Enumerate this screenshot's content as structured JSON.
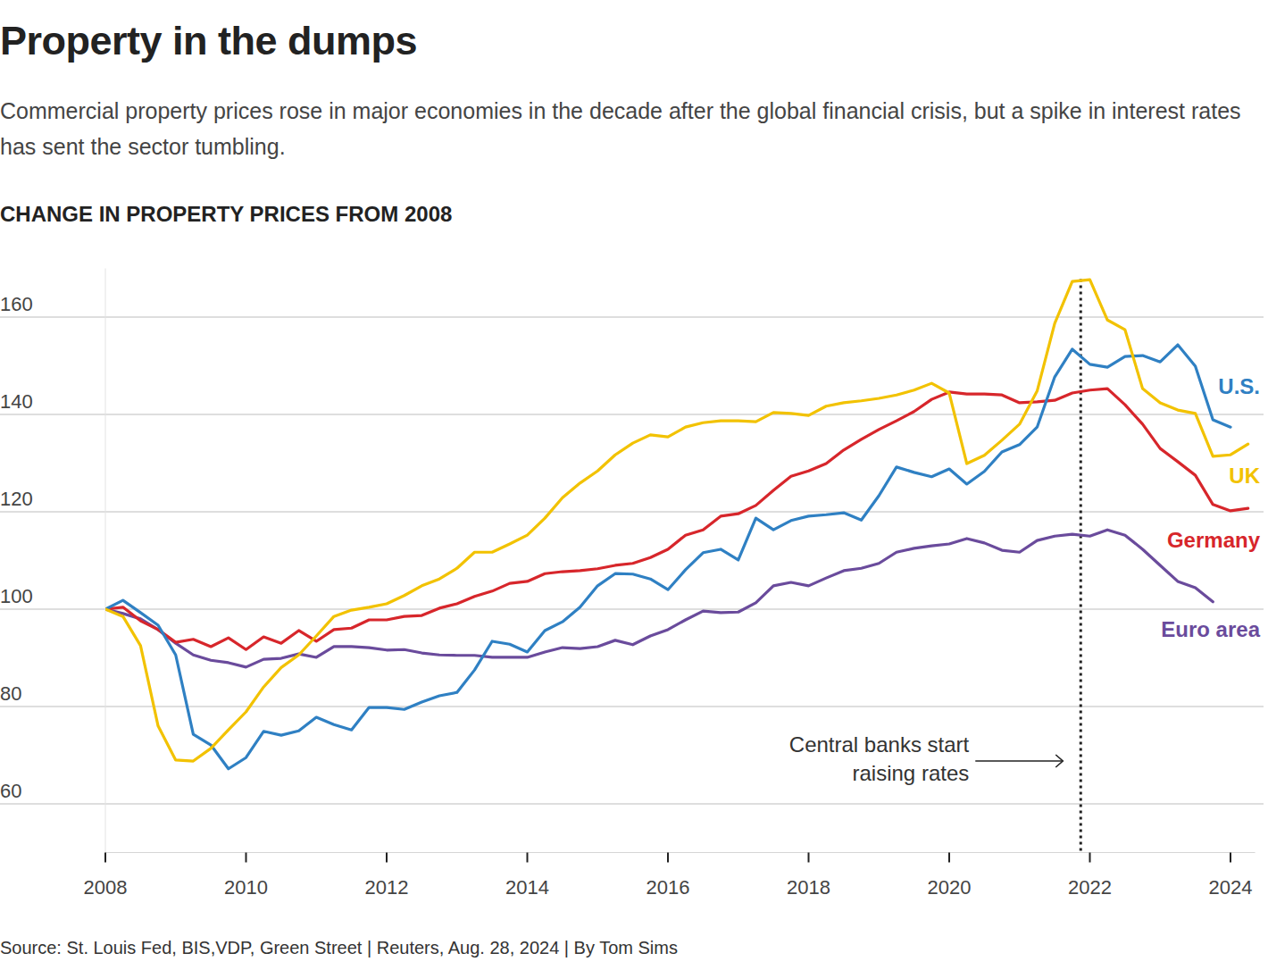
{
  "chart_data": {
    "type": "line",
    "title": "Property in the dumps",
    "subtitle": "Commercial property prices rose in major economies in the decade after the global financial crisis, but a spike in interest rates has sent the sector tumbling.",
    "y_label": "CHANGE IN PROPERTY PRICES FROM 2008",
    "source": "Source: St. Louis Fed, BIS,VDP, Green Street | Reuters, Aug. 28, 2024 | By Tom Sims",
    "annotations": [
      {
        "lines": [
          "Central banks start",
          "raising rates"
        ],
        "x": 2021.87
      }
    ],
    "grid": true,
    "xlim": [
      2008,
      2024.35
    ],
    "xticks": [
      2008,
      2010,
      2012,
      2014,
      2016,
      2018,
      2020,
      2022,
      2024
    ],
    "ylim": [
      50,
      170
    ],
    "yticks": [
      60,
      80,
      100,
      120,
      140,
      160
    ],
    "x": [
      2008,
      2008.25,
      2008.5,
      2008.75,
      2009,
      2009.25,
      2009.5,
      2009.75,
      2010,
      2010.25,
      2010.5,
      2010.75,
      2011,
      2011.25,
      2011.5,
      2011.75,
      2012,
      2012.25,
      2012.5,
      2012.75,
      2013,
      2013.25,
      2013.5,
      2013.75,
      2014,
      2014.25,
      2014.5,
      2014.75,
      2015,
      2015.25,
      2015.5,
      2015.75,
      2016,
      2016.25,
      2016.5,
      2016.75,
      2017,
      2017.25,
      2017.5,
      2017.75,
      2018,
      2018.25,
      2018.5,
      2018.75,
      2019,
      2019.25,
      2019.5,
      2019.75,
      2020,
      2020.25,
      2020.5,
      2020.75,
      2021,
      2021.25,
      2021.5,
      2021.75,
      2022,
      2022.25,
      2022.5,
      2022.75,
      2023,
      2023.25,
      2023.5,
      2023.75,
      2024,
      2024.25
    ],
    "series": [
      {
        "name": "U.S.",
        "color": "#2f80c3",
        "values": [
          100,
          101.8,
          99.3,
          96.7,
          90.6,
          74.3,
          72.1,
          67.2,
          69.5,
          74.9,
          74.1,
          75,
          77.8,
          76.3,
          75.2,
          79.8,
          79.8,
          79.4,
          80.9,
          82.2,
          82.9,
          87.5,
          93.4,
          92.8,
          91.2,
          95.6,
          97.4,
          100.4,
          104.8,
          107.3,
          107.2,
          106.2,
          104,
          108.1,
          111.6,
          112.3,
          110.1,
          118.7,
          116.3,
          118.2,
          119.1,
          119.4,
          119.8,
          118.3,
          123.3,
          129.2,
          128.1,
          127.2,
          128.8,
          125.7,
          128.3,
          132.3,
          133.8,
          137.4,
          147.7,
          153.4,
          150.3,
          149.7,
          151.9,
          152.1,
          150.8,
          154.3,
          149.9,
          138.9,
          137.4,
          null
        ]
      },
      {
        "name": "UK",
        "color": "#f2c200",
        "values": [
          100,
          98.5,
          92.5,
          76,
          69,
          68.8,
          71.4,
          75.2,
          78.9,
          84,
          88,
          90.6,
          94.5,
          98.5,
          99.8,
          100.4,
          101.1,
          102.8,
          104.8,
          106.2,
          108.4,
          111.7,
          111.7,
          113.4,
          115.2,
          118.7,
          122.9,
          125.9,
          128.4,
          131.7,
          134.1,
          135.8,
          135.4,
          137.4,
          138.3,
          138.7,
          138.7,
          138.5,
          140.4,
          140.2,
          139.8,
          141.7,
          142.4,
          142.8,
          143.3,
          144,
          145,
          146.4,
          144.4,
          129.9,
          131.6,
          134.7,
          138,
          144.8,
          158.7,
          167.3,
          167.7,
          159.4,
          157.4,
          145.3,
          142.4,
          140.9,
          140.2,
          131.4,
          131.7,
          133.9
        ]
      },
      {
        "name": "Germany",
        "color": "#d7262b",
        "values": [
          100,
          100.4,
          97.6,
          95.8,
          93.2,
          93.8,
          92.3,
          94.1,
          91.7,
          94.3,
          93,
          95.6,
          93.4,
          95.8,
          96.1,
          97.8,
          97.8,
          98.5,
          98.7,
          100.2,
          101.1,
          102.6,
          103.7,
          105.3,
          105.7,
          107.3,
          107.7,
          107.9,
          108.3,
          109,
          109.4,
          110.6,
          112.3,
          115.2,
          116.3,
          119.1,
          119.6,
          121.3,
          124.4,
          127.3,
          128.4,
          129.9,
          132.7,
          134.9,
          136.9,
          138.7,
          140.6,
          143.1,
          144.6,
          144.2,
          144.2,
          144,
          142.4,
          142.6,
          142.9,
          144.4,
          145,
          145.3,
          142,
          138,
          133,
          130.3,
          127.5,
          121.5,
          120.2,
          120.7
        ]
      },
      {
        "name": "Euro area",
        "color": "#6a4b9c",
        "values": [
          100,
          99.1,
          98,
          95.8,
          93,
          90.6,
          89.5,
          89,
          88.1,
          89.7,
          89.9,
          90.8,
          90.1,
          92.3,
          92.3,
          92.1,
          91.6,
          91.7,
          91,
          90.6,
          90.5,
          90.5,
          90.1,
          90.1,
          90.1,
          91.2,
          92.1,
          91.9,
          92.3,
          93.6,
          92.7,
          94.5,
          95.8,
          97.8,
          99.6,
          99.3,
          99.4,
          101.3,
          104.8,
          105.5,
          104.8,
          106.4,
          107.9,
          108.4,
          109.4,
          111.7,
          112.5,
          113,
          113.4,
          114.5,
          113.6,
          112.1,
          111.7,
          114.1,
          115,
          115.4,
          115,
          116.3,
          115.2,
          112.3,
          109,
          105.7,
          104.4,
          101.5,
          null,
          null
        ]
      }
    ]
  }
}
